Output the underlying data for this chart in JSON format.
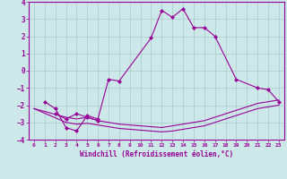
{
  "xlabel": "Windchill (Refroidissement éolien,°C)",
  "xlim": [
    -0.5,
    23.5
  ],
  "ylim": [
    -4,
    4
  ],
  "yticks": [
    -4,
    -3,
    -2,
    -1,
    0,
    1,
    2,
    3,
    4
  ],
  "xticks": [
    0,
    1,
    2,
    3,
    4,
    5,
    6,
    7,
    8,
    9,
    10,
    11,
    12,
    13,
    14,
    15,
    16,
    17,
    18,
    19,
    20,
    21,
    22,
    23
  ],
  "background_color": "#cce8e8",
  "line_color": "#990099",
  "grid_color": "#aacccc",
  "series": {
    "line1_x": [
      1,
      2,
      3,
      4,
      5,
      6,
      7,
      8,
      11,
      12,
      13,
      14,
      15,
      16,
      17,
      19,
      21,
      22,
      23
    ],
    "line1_y": [
      -1.8,
      -2.2,
      -3.3,
      -3.5,
      -2.6,
      -2.8,
      -0.5,
      -0.6,
      1.9,
      3.5,
      3.1,
      3.6,
      2.5,
      2.5,
      2.0,
      -0.5,
      -1.0,
      -1.1,
      -1.8
    ],
    "line2_x": [
      2,
      3,
      4,
      5,
      6
    ],
    "line2_y": [
      -2.5,
      -2.8,
      -2.5,
      -2.7,
      -2.9
    ],
    "line3_x": [
      0,
      3,
      4,
      5,
      6,
      7,
      8,
      9,
      10,
      11,
      12,
      13,
      14,
      15,
      16,
      17,
      18,
      19,
      20,
      21,
      22,
      23
    ],
    "line3_y": [
      -2.2,
      -2.7,
      -2.8,
      -2.7,
      -2.9,
      -3.0,
      -3.1,
      -3.15,
      -3.2,
      -3.25,
      -3.3,
      -3.2,
      -3.1,
      -3.0,
      -2.9,
      -2.7,
      -2.5,
      -2.3,
      -2.1,
      -1.9,
      -1.8,
      -1.7
    ],
    "line4_x": [
      0,
      3,
      4,
      5,
      6,
      7,
      8,
      9,
      10,
      11,
      12,
      13,
      14,
      15,
      16,
      17,
      18,
      19,
      20,
      21,
      22,
      23
    ],
    "line4_y": [
      -2.2,
      -3.0,
      -3.1,
      -3.05,
      -3.15,
      -3.25,
      -3.35,
      -3.4,
      -3.45,
      -3.5,
      -3.55,
      -3.5,
      -3.4,
      -3.3,
      -3.2,
      -3.0,
      -2.8,
      -2.6,
      -2.4,
      -2.2,
      -2.1,
      -2.0
    ]
  }
}
